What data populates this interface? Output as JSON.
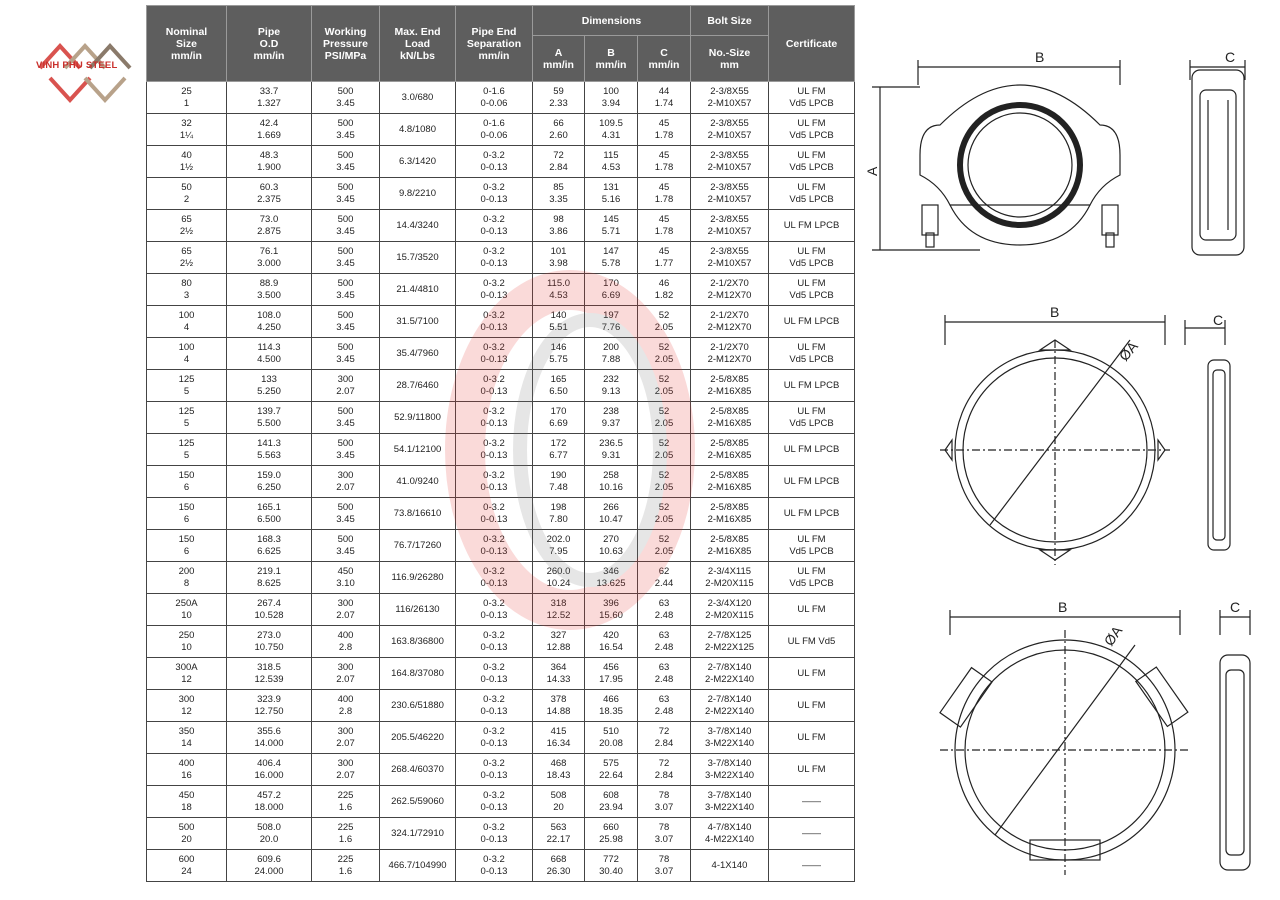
{
  "logo": {
    "text": "VINH PHU STEEL",
    "color": "#c9302c"
  },
  "table": {
    "headers": {
      "nominal": [
        "Nominal",
        "Size",
        "mm/in"
      ],
      "od": [
        "Pipe",
        "O.D",
        "mm/in"
      ],
      "pressure": [
        "Working",
        "Pressure",
        "PSI/MPa"
      ],
      "load": [
        "Max. End",
        "Load",
        "kN/Lbs"
      ],
      "separation": [
        "Pipe End",
        "Separation",
        "mm/in"
      ],
      "dimensions": "Dimensions",
      "dim_a": [
        "A",
        "mm/in"
      ],
      "dim_b": [
        "B",
        "mm/in"
      ],
      "dim_c": [
        "C",
        "mm/in"
      ],
      "bolt": "Bolt Size",
      "bolt_sub": [
        "No.-Size",
        "mm"
      ],
      "certificate": "Certificate"
    },
    "rows": [
      [
        [
          "25",
          "1"
        ],
        [
          "33.7",
          "1.327"
        ],
        [
          "500",
          "3.45"
        ],
        [
          "3.0/680"
        ],
        [
          "0-1.6",
          "0-0.06"
        ],
        [
          "59",
          "2.33"
        ],
        [
          "100",
          "3.94"
        ],
        [
          "44",
          "1.74"
        ],
        [
          "2-3/8X55",
          "2-M10X57"
        ],
        [
          "UL FM",
          "Vd5 LPCB"
        ]
      ],
      [
        [
          "32",
          "1¼"
        ],
        [
          "42.4",
          "1.669"
        ],
        [
          "500",
          "3.45"
        ],
        [
          "4.8/1080"
        ],
        [
          "0-1.6",
          "0-0.06"
        ],
        [
          "66",
          "2.60"
        ],
        [
          "109.5",
          "4.31"
        ],
        [
          "45",
          "1.78"
        ],
        [
          "2-3/8X55",
          "2-M10X57"
        ],
        [
          "UL FM",
          "Vd5 LPCB"
        ]
      ],
      [
        [
          "40",
          "1½"
        ],
        [
          "48.3",
          "1.900"
        ],
        [
          "500",
          "3.45"
        ],
        [
          "6.3/1420"
        ],
        [
          "0-3.2",
          "0-0.13"
        ],
        [
          "72",
          "2.84"
        ],
        [
          "115",
          "4.53"
        ],
        [
          "45",
          "1.78"
        ],
        [
          "2-3/8X55",
          "2-M10X57"
        ],
        [
          "UL FM",
          "Vd5 LPCB"
        ]
      ],
      [
        [
          "50",
          "2"
        ],
        [
          "60.3",
          "2.375"
        ],
        [
          "500",
          "3.45"
        ],
        [
          "9.8/2210"
        ],
        [
          "0-3.2",
          "0-0.13"
        ],
        [
          "85",
          "3.35"
        ],
        [
          "131",
          "5.16"
        ],
        [
          "45",
          "1.78"
        ],
        [
          "2-3/8X55",
          "2-M10X57"
        ],
        [
          "UL FM",
          "Vd5 LPCB"
        ]
      ],
      [
        [
          "65",
          "2½"
        ],
        [
          "73.0",
          "2.875"
        ],
        [
          "500",
          "3.45"
        ],
        [
          "14.4/3240"
        ],
        [
          "0-3.2",
          "0-0.13"
        ],
        [
          "98",
          "3.86"
        ],
        [
          "145",
          "5.71"
        ],
        [
          "45",
          "1.78"
        ],
        [
          "2-3/8X55",
          "2-M10X57"
        ],
        [
          "UL FM LPCB"
        ]
      ],
      [
        [
          "65",
          "2½"
        ],
        [
          "76.1",
          "3.000"
        ],
        [
          "500",
          "3.45"
        ],
        [
          "15.7/3520"
        ],
        [
          "0-3.2",
          "0-0.13"
        ],
        [
          "101",
          "3.98"
        ],
        [
          "147",
          "5.78"
        ],
        [
          "45",
          "1.77"
        ],
        [
          "2-3/8X55",
          "2-M10X57"
        ],
        [
          "UL FM",
          "Vd5 LPCB"
        ]
      ],
      [
        [
          "80",
          "3"
        ],
        [
          "88.9",
          "3.500"
        ],
        [
          "500",
          "3.45"
        ],
        [
          "21.4/4810"
        ],
        [
          "0-3.2",
          "0-0.13"
        ],
        [
          "115.0",
          "4.53"
        ],
        [
          "170",
          "6.69"
        ],
        [
          "46",
          "1.82"
        ],
        [
          "2-1/2X70",
          "2-M12X70"
        ],
        [
          "UL FM",
          "Vd5 LPCB"
        ]
      ],
      [
        [
          "100",
          "4"
        ],
        [
          "108.0",
          "4.250"
        ],
        [
          "500",
          "3.45"
        ],
        [
          "31.5/7100"
        ],
        [
          "0-3.2",
          "0-0.13"
        ],
        [
          "140",
          "5.51"
        ],
        [
          "197",
          "7.76"
        ],
        [
          "52",
          "2.05"
        ],
        [
          "2-1/2X70",
          "2-M12X70"
        ],
        [
          "UL FM LPCB"
        ]
      ],
      [
        [
          "100",
          "4"
        ],
        [
          "114.3",
          "4.500"
        ],
        [
          "500",
          "3.45"
        ],
        [
          "35.4/7960"
        ],
        [
          "0-3.2",
          "0-0.13"
        ],
        [
          "146",
          "5.75"
        ],
        [
          "200",
          "7.88"
        ],
        [
          "52",
          "2.05"
        ],
        [
          "2-1/2X70",
          "2-M12X70"
        ],
        [
          "UL FM",
          "Vd5 LPCB"
        ]
      ],
      [
        [
          "125",
          "5"
        ],
        [
          "133",
          "5.250"
        ],
        [
          "300",
          "2.07"
        ],
        [
          "28.7/6460"
        ],
        [
          "0-3.2",
          "0-0.13"
        ],
        [
          "165",
          "6.50"
        ],
        [
          "232",
          "9.13"
        ],
        [
          "52",
          "2.05"
        ],
        [
          "2-5/8X85",
          "2-M16X85"
        ],
        [
          "UL FM LPCB"
        ]
      ],
      [
        [
          "125",
          "5"
        ],
        [
          "139.7",
          "5.500"
        ],
        [
          "500",
          "3.45"
        ],
        [
          "52.9/11800"
        ],
        [
          "0-3.2",
          "0-0.13"
        ],
        [
          "170",
          "6.69"
        ],
        [
          "238",
          "9.37"
        ],
        [
          "52",
          "2.05"
        ],
        [
          "2-5/8X85",
          "2-M16X85"
        ],
        [
          "UL FM",
          "Vd5 LPCB"
        ]
      ],
      [
        [
          "125",
          "5"
        ],
        [
          "141.3",
          "5.563"
        ],
        [
          "500",
          "3.45"
        ],
        [
          "54.1/12100"
        ],
        [
          "0-3.2",
          "0-0.13"
        ],
        [
          "172",
          "6.77"
        ],
        [
          "236.5",
          "9.31"
        ],
        [
          "52",
          "2.05"
        ],
        [
          "2-5/8X85",
          "2-M16X85"
        ],
        [
          "UL FM LPCB"
        ]
      ],
      [
        [
          "150",
          "6"
        ],
        [
          "159.0",
          "6.250"
        ],
        [
          "300",
          "2.07"
        ],
        [
          "41.0/9240"
        ],
        [
          "0-3.2",
          "0-0.13"
        ],
        [
          "190",
          "7.48"
        ],
        [
          "258",
          "10.16"
        ],
        [
          "52",
          "2.05"
        ],
        [
          "2-5/8X85",
          "2-M16X85"
        ],
        [
          "UL FM LPCB"
        ]
      ],
      [
        [
          "150",
          "6"
        ],
        [
          "165.1",
          "6.500"
        ],
        [
          "500",
          "3.45"
        ],
        [
          "73.8/16610"
        ],
        [
          "0-3.2",
          "0-0.13"
        ],
        [
          "198",
          "7.80"
        ],
        [
          "266",
          "10.47"
        ],
        [
          "52",
          "2.05"
        ],
        [
          "2-5/8X85",
          "2-M16X85"
        ],
        [
          "UL FM LPCB"
        ]
      ],
      [
        [
          "150",
          "6"
        ],
        [
          "168.3",
          "6.625"
        ],
        [
          "500",
          "3.45"
        ],
        [
          "76.7/17260"
        ],
        [
          "0-3.2",
          "0-0.13"
        ],
        [
          "202.0",
          "7.95"
        ],
        [
          "270",
          "10.63"
        ],
        [
          "52",
          "2.05"
        ],
        [
          "2-5/8X85",
          "2-M16X85"
        ],
        [
          "UL FM",
          "Vd5 LPCB"
        ]
      ],
      [
        [
          "200",
          "8"
        ],
        [
          "219.1",
          "8.625"
        ],
        [
          "450",
          "3.10"
        ],
        [
          "116.9/26280"
        ],
        [
          "0-3.2",
          "0-0.13"
        ],
        [
          "260.0",
          "10.24"
        ],
        [
          "346",
          "13.625"
        ],
        [
          "62",
          "2.44"
        ],
        [
          "2-3/4X115",
          "2-M20X115"
        ],
        [
          "UL FM",
          "Vd5 LPCB"
        ]
      ],
      [
        [
          "250A",
          "10"
        ],
        [
          "267.4",
          "10.528"
        ],
        [
          "300",
          "2.07"
        ],
        [
          "116/26130"
        ],
        [
          "0-3.2",
          "0-0.13"
        ],
        [
          "318",
          "12.52"
        ],
        [
          "396",
          "15.60"
        ],
        [
          "63",
          "2.48"
        ],
        [
          "2-3/4X120",
          "2-M20X115"
        ],
        [
          "UL FM"
        ]
      ],
      [
        [
          "250",
          "10"
        ],
        [
          "273.0",
          "10.750"
        ],
        [
          "400",
          "2.8"
        ],
        [
          "163.8/36800"
        ],
        [
          "0-3.2",
          "0-0.13"
        ],
        [
          "327",
          "12.88"
        ],
        [
          "420",
          "16.54"
        ],
        [
          "63",
          "2.48"
        ],
        [
          "2-7/8X125",
          "2-M22X125"
        ],
        [
          "UL FM Vd5"
        ]
      ],
      [
        [
          "300A",
          "12"
        ],
        [
          "318.5",
          "12.539"
        ],
        [
          "300",
          "2.07"
        ],
        [
          "164.8/37080"
        ],
        [
          "0-3.2",
          "0-0.13"
        ],
        [
          "364",
          "14.33"
        ],
        [
          "456",
          "17.95"
        ],
        [
          "63",
          "2.48"
        ],
        [
          "2-7/8X140",
          "2-M22X140"
        ],
        [
          "UL FM"
        ]
      ],
      [
        [
          "300",
          "12"
        ],
        [
          "323.9",
          "12.750"
        ],
        [
          "400",
          "2.8"
        ],
        [
          "230.6/51880"
        ],
        [
          "0-3.2",
          "0-0.13"
        ],
        [
          "378",
          "14.88"
        ],
        [
          "466",
          "18.35"
        ],
        [
          "63",
          "2.48"
        ],
        [
          "2-7/8X140",
          "2-M22X140"
        ],
        [
          "UL FM"
        ]
      ],
      [
        [
          "350",
          "14"
        ],
        [
          "355.6",
          "14.000"
        ],
        [
          "300",
          "2.07"
        ],
        [
          "205.5/46220"
        ],
        [
          "0-3.2",
          "0-0.13"
        ],
        [
          "415",
          "16.34"
        ],
        [
          "510",
          "20.08"
        ],
        [
          "72",
          "2.84"
        ],
        [
          "3-7/8X140",
          "3-M22X140"
        ],
        [
          "UL FM"
        ]
      ],
      [
        [
          "400",
          "16"
        ],
        [
          "406.4",
          "16.000"
        ],
        [
          "300",
          "2.07"
        ],
        [
          "268.4/60370"
        ],
        [
          "0-3.2",
          "0-0.13"
        ],
        [
          "468",
          "18.43"
        ],
        [
          "575",
          "22.64"
        ],
        [
          "72",
          "2.84"
        ],
        [
          "3-7/8X140",
          "3-M22X140"
        ],
        [
          "UL FM"
        ]
      ],
      [
        [
          "450",
          "18"
        ],
        [
          "457.2",
          "18.000"
        ],
        [
          "225",
          "1.6"
        ],
        [
          "262.5/59060"
        ],
        [
          "0-3.2",
          "0-0.13"
        ],
        [
          "508",
          "20"
        ],
        [
          "608",
          "23.94"
        ],
        [
          "78",
          "3.07"
        ],
        [
          "3-7/8X140",
          "3-M22X140"
        ],
        [
          "——"
        ]
      ],
      [
        [
          "500",
          "20"
        ],
        [
          "508.0",
          "20.0"
        ],
        [
          "225",
          "1.6"
        ],
        [
          "324.1/72910"
        ],
        [
          "0-3.2",
          "0-0.13"
        ],
        [
          "563",
          "22.17"
        ],
        [
          "660",
          "25.98"
        ],
        [
          "78",
          "3.07"
        ],
        [
          "4-7/8X140",
          "4-M22X140"
        ],
        [
          "——"
        ]
      ],
      [
        [
          "600",
          "24"
        ],
        [
          "609.6",
          "24.000"
        ],
        [
          "225",
          "1.6"
        ],
        [
          "466.7/104990"
        ],
        [
          "0-3.2",
          "0-0.13"
        ],
        [
          "668",
          "26.30"
        ],
        [
          "772",
          "30.40"
        ],
        [
          "78",
          "3.07"
        ],
        [
          "4-1X140"
        ],
        [
          "——"
        ]
      ]
    ]
  },
  "drawings": {
    "top": {
      "b": "B",
      "c": "C",
      "a": "A"
    },
    "middle": {
      "b": "B",
      "c": "C",
      "a": "ØA"
    },
    "bottom": {
      "b": "B",
      "c": "C",
      "a": "ØA"
    }
  },
  "colors": {
    "header_bg": "#5e5e5e",
    "watermark": "#e53935"
  }
}
